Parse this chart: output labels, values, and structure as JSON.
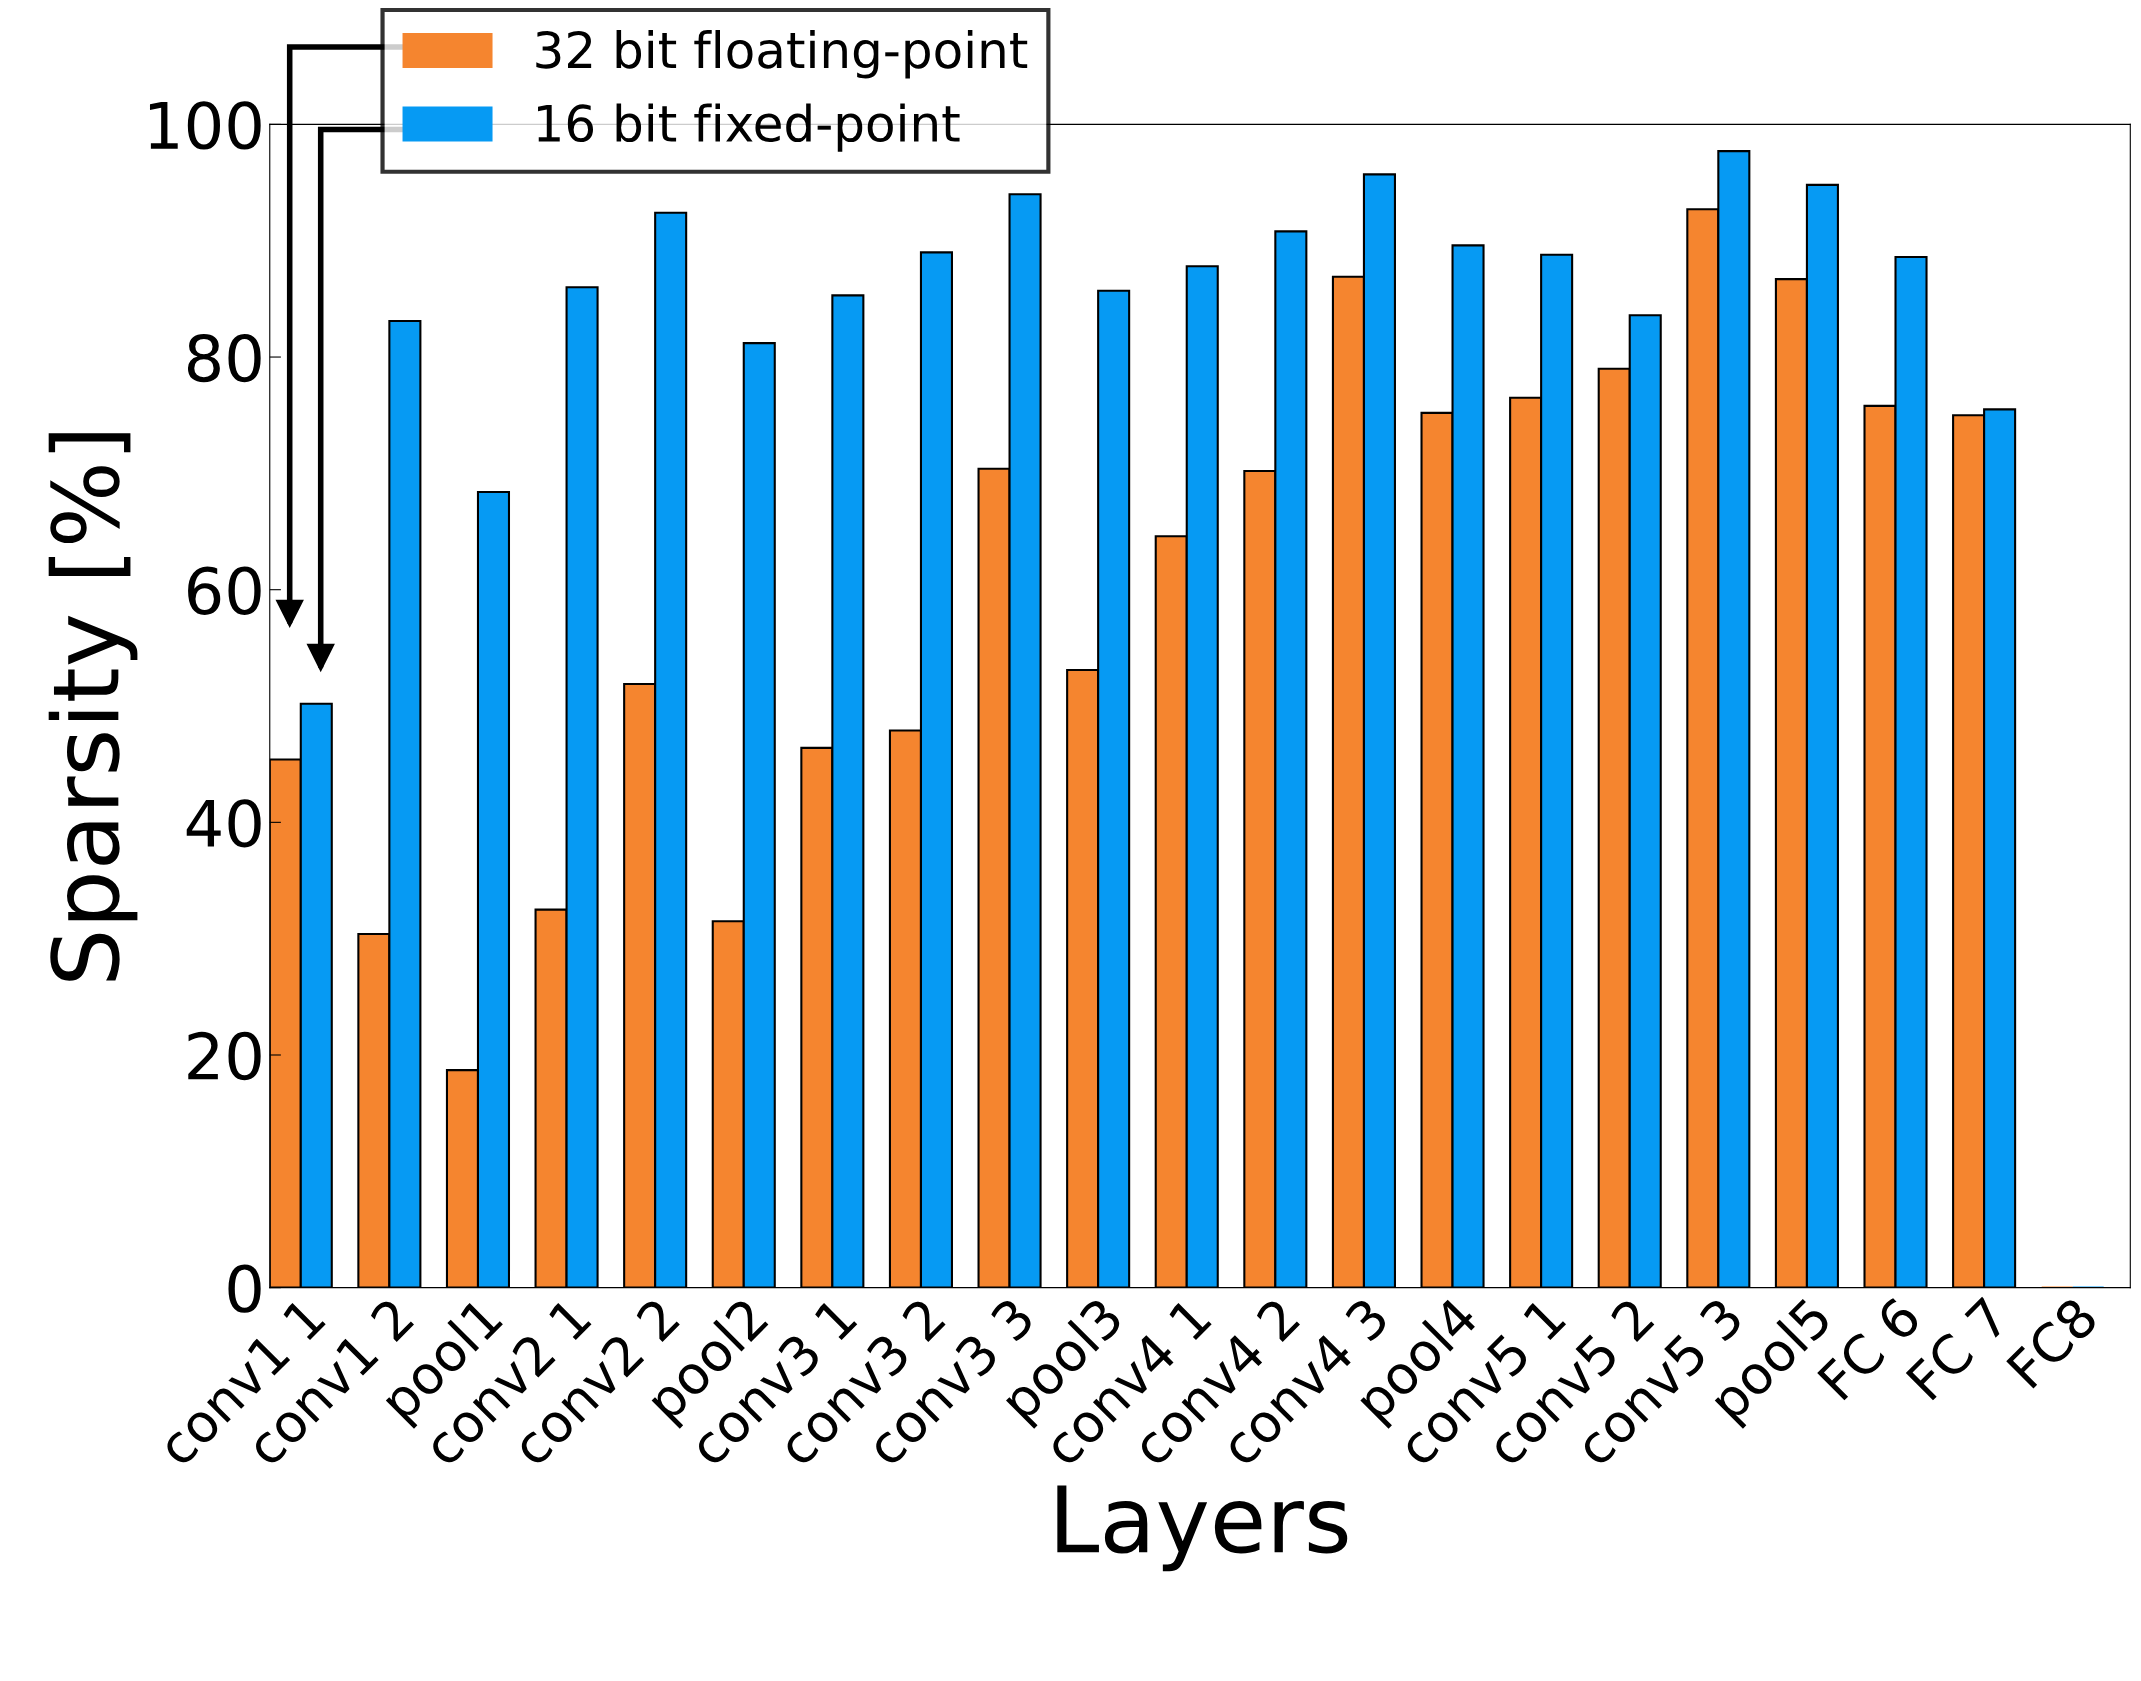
{
  "chart_data": {
    "type": "bar",
    "xlabel": "Layers",
    "ylabel": "Sparsity [%]",
    "categories": [
      "conv1 1",
      "conv1 2",
      "pool1",
      "conv2 1",
      "conv2 2",
      "pool2",
      "conv3 1",
      "conv3 2",
      "conv3 3",
      "pool3",
      "conv4 1",
      "conv4 2",
      "conv4 3",
      "pool4",
      "conv5 1",
      "conv5 2",
      "conv5 3",
      "pool5",
      "FC 6",
      "FC 7",
      "FC8"
    ],
    "series": [
      {
        "name": "32 bit floating-point",
        "color": "#f5852f",
        "values": [
          45.4,
          30.4,
          18.7,
          32.5,
          51.9,
          31.5,
          46.4,
          47.9,
          70.4,
          53.1,
          64.6,
          70.2,
          86.9,
          75.2,
          76.5,
          79.0,
          92.7,
          86.7,
          75.8,
          75.0,
          0
        ]
      },
      {
        "name": "16 bit fixed-point",
        "color": "#069af3",
        "values": [
          50.2,
          83.1,
          68.4,
          86.0,
          92.4,
          81.2,
          85.3,
          89.0,
          94.0,
          85.7,
          87.8,
          90.8,
          95.7,
          89.6,
          88.8,
          83.6,
          97.7,
          94.8,
          88.6,
          75.5,
          0
        ]
      }
    ],
    "ylim": [
      0,
      100
    ],
    "yticks": [
      0,
      20,
      40,
      60,
      80,
      100
    ],
    "grid": false,
    "legend": "top left"
  }
}
